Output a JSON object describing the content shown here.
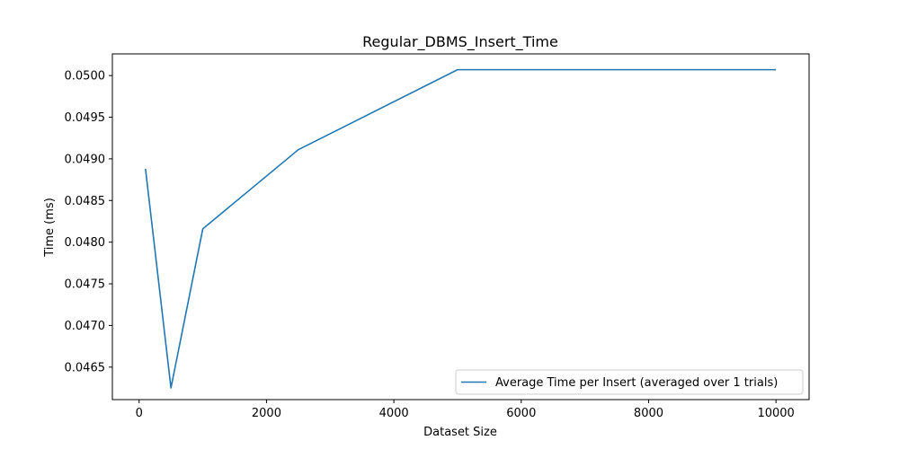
{
  "chart_data": {
    "type": "line",
    "title": "Regular_DBMS_Insert_Time",
    "xlabel": "Dataset Size",
    "ylabel": "Time (ms)",
    "xlim": [
      -420,
      10520
    ],
    "ylim": [
      0.04611,
      0.05026
    ],
    "xticks": [
      0,
      2000,
      4000,
      6000,
      8000,
      10000
    ],
    "xtick_labels": [
      "0",
      "2000",
      "4000",
      "6000",
      "8000",
      "10000"
    ],
    "yticks": [
      0.0465,
      0.047,
      0.0475,
      0.048,
      0.0485,
      0.049,
      0.0495,
      0.05
    ],
    "ytick_labels": [
      "0.0465",
      "0.0470",
      "0.0475",
      "0.0480",
      "0.0485",
      "0.0490",
      "0.0495",
      "0.0500"
    ],
    "grid": false,
    "legend": "lower-right",
    "series": [
      {
        "name": "Average Time per Insert (averaged over 1 trials)",
        "color": "#1f77b4",
        "x": [
          100,
          500,
          1000,
          2500,
          5000,
          10000
        ],
        "y": [
          0.04888,
          0.04625,
          0.04816,
          0.04911,
          0.05007,
          0.05007
        ]
      }
    ]
  }
}
